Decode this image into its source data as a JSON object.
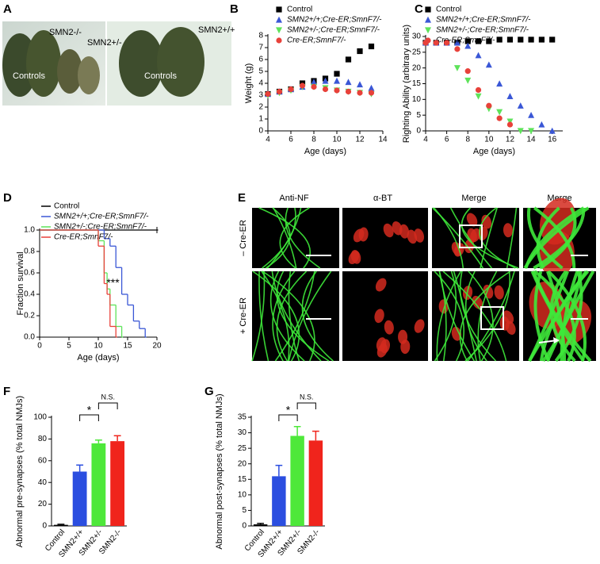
{
  "photo_a": {
    "panel": "A",
    "labels": [
      "SMN2-/-",
      "SMN2+/-",
      "SMN2+/+",
      "Controls",
      "Controls"
    ]
  },
  "photo_e": {
    "panel": "E",
    "column_headers": [
      "Anti-NF",
      "α-BT",
      "Merge",
      "Merge"
    ],
    "row_labels": [
      "– Cre-ER",
      "+ Cre-ER"
    ]
  },
  "chart_data": [
    {
      "panel": "B",
      "type": "scatter",
      "xlabel": "Age (days)",
      "ylabel": "Weight (g)",
      "x": [
        4,
        5,
        6,
        7,
        8,
        9,
        10,
        11,
        12,
        13
      ],
      "xlim": [
        4,
        14
      ],
      "xticks": [
        4,
        6,
        8,
        10,
        12,
        14
      ],
      "ylim": [
        0,
        8
      ],
      "yticks": [
        0,
        1,
        2,
        3,
        4,
        5,
        6,
        7,
        8
      ],
      "series": [
        {
          "name": "Control",
          "color": "#000000",
          "marker": "square",
          "values": [
            3.1,
            3.3,
            3.5,
            4.0,
            4.2,
            4.4,
            4.8,
            6.0,
            6.7,
            7.1
          ]
        },
        {
          "name": "SMN2+/+;Cre-ER;SmnF7/-",
          "color": "#3a57d6",
          "marker": "triangle",
          "values": [
            3.1,
            3.3,
            3.5,
            3.7,
            4.1,
            4.2,
            4.2,
            4.1,
            3.9,
            3.6
          ]
        },
        {
          "name": "SMN2+/-;Cre-ER;SmnF7/-",
          "color": "#5ee35a",
          "marker": "triangle-down",
          "values": [
            3.0,
            3.2,
            3.4,
            3.7,
            3.7,
            3.6,
            3.4,
            3.3,
            3.2,
            3.1
          ]
        },
        {
          "name": "Cre-ER;SmnF7/-",
          "color": "#e8413a",
          "marker": "circle",
          "values": [
            3.1,
            3.3,
            3.5,
            3.8,
            3.7,
            3.5,
            3.4,
            3.3,
            3.2,
            3.2
          ]
        }
      ]
    },
    {
      "panel": "C",
      "type": "scatter",
      "xlabel": "Age (days)",
      "ylabel": "Righting Ability (arbitrary units)",
      "x": [
        4,
        5,
        6,
        7,
        8,
        9,
        10,
        11,
        12,
        13,
        14,
        15,
        16
      ],
      "xlim": [
        4,
        17
      ],
      "xticks": [
        4,
        6,
        8,
        10,
        12,
        14,
        16
      ],
      "ylim": [
        0,
        30
      ],
      "yticks": [
        0,
        5,
        10,
        15,
        20,
        25,
        30
      ],
      "series": [
        {
          "name": "Control",
          "color": "#000000",
          "marker": "square",
          "values": [
            28,
            28,
            28,
            28,
            28.5,
            28.5,
            28.5,
            29,
            29,
            29,
            29,
            29,
            29
          ]
        },
        {
          "name": "SMN2+/+;Cre-ER;SmnF7/-",
          "color": "#3a57d6",
          "marker": "triangle",
          "values": [
            28,
            28,
            28,
            28,
            27,
            24,
            21,
            15,
            11,
            8,
            5,
            2,
            0
          ]
        },
        {
          "name": "SMN2+/-;Cre-ER;SmnF7/-",
          "color": "#5ee35a",
          "marker": "triangle-down",
          "values": [
            null,
            null,
            null,
            20,
            16,
            11,
            7,
            6,
            3,
            0,
            0,
            null,
            null
          ]
        },
        {
          "name": "Cre-ER;SmnF7/-",
          "color": "#e8413a",
          "marker": "circle",
          "values": [
            28,
            28,
            28,
            26,
            19,
            13,
            8,
            4,
            2,
            null,
            null,
            null,
            null
          ]
        }
      ]
    },
    {
      "panel": "D",
      "type": "step",
      "xlabel": "Age (days)",
      "ylabel": "Fraction survival",
      "annotation": "***",
      "xlim": [
        0,
        20
      ],
      "xticks": [
        0,
        5,
        10,
        15,
        20
      ],
      "ylim": [
        0,
        1
      ],
      "yticks": [
        {
          "value": 0,
          "label": "0.0"
        },
        {
          "value": 0.2,
          "label": "0.2"
        },
        {
          "value": 0.4,
          "label": "0.4"
        },
        {
          "value": 0.6,
          "label": "0.6"
        },
        {
          "value": 0.8,
          "label": "0.8"
        },
        {
          "value": 1,
          "label": "1.0"
        }
      ],
      "series": [
        {
          "name": "Control",
          "color": "#000000",
          "x": [
            0,
            20
          ],
          "values": [
            1,
            1
          ]
        },
        {
          "name": "SMN2+/+;Cre-ER;SmnF7/-",
          "color": "#3a57d6",
          "x": [
            0,
            11,
            12,
            13,
            14,
            15,
            16,
            17,
            18
          ],
          "values": [
            1,
            0.92,
            0.85,
            0.65,
            0.4,
            0.3,
            0.15,
            0.08,
            0
          ]
        },
        {
          "name": "SMN2+/-;Cre-ER;SmnF7/-",
          "color": "#5ee35a",
          "x": [
            0,
            10,
            11,
            11.5,
            12,
            13,
            14
          ],
          "values": [
            1,
            0.9,
            0.6,
            0.45,
            0.3,
            0.1,
            0
          ]
        },
        {
          "name": "Cre-ER;SmnF7/-",
          "color": "#e8413a",
          "x": [
            0,
            10,
            11,
            11.5,
            12,
            13
          ],
          "values": [
            1,
            0.85,
            0.5,
            0.4,
            0.1,
            0
          ]
        }
      ]
    },
    {
      "panel": "F",
      "type": "bar",
      "ylabel": "Abnormal pre-synapses (% total NMJs)",
      "annotations": [
        "*",
        "N.S."
      ],
      "categories": [
        "Control",
        "SMN2+/+",
        "SMN2+/-",
        "SMN2-/-"
      ],
      "values": [
        1,
        50,
        76,
        78
      ],
      "errors": [
        0.5,
        6,
        3,
        5
      ],
      "colors": [
        "#000000",
        "#2b4ee0",
        "#4ee83a",
        "#f0241c"
      ],
      "ylim": [
        0,
        100
      ],
      "yticks": [
        0,
        20,
        40,
        60,
        80,
        100
      ]
    },
    {
      "panel": "G",
      "type": "bar",
      "ylabel": "Abnormal post-synapses (% total NMJs)",
      "annotations": [
        "*",
        "N.S."
      ],
      "categories": [
        "Control",
        "SMN2+/+",
        "SMN2+/-",
        "SMN2-/-"
      ],
      "values": [
        0.5,
        16,
        29,
        27.5
      ],
      "errors": [
        0.3,
        3.5,
        3,
        3
      ],
      "colors": [
        "#000000",
        "#2b4ee0",
        "#4ee83a",
        "#f0241c"
      ],
      "ylim": [
        0,
        35
      ],
      "yticks": [
        0,
        5,
        10,
        15,
        20,
        25,
        30,
        35
      ]
    }
  ]
}
